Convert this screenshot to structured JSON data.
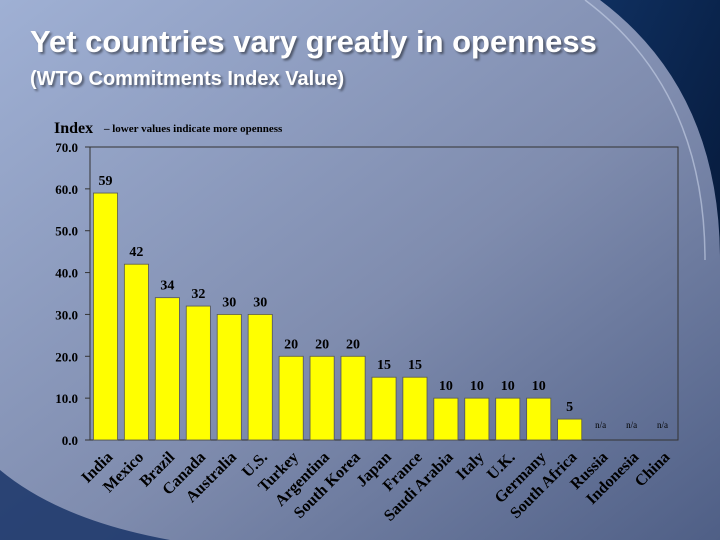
{
  "slide": {
    "title": "Yet countries vary greatly in openness",
    "subtitle": "(WTO Commitments Index Value)",
    "colors": {
      "bar": "#ffff00",
      "bar_stroke": "#555555",
      "background_dark": "#1b3a6b",
      "background_light": "#aab6d0"
    }
  },
  "chart_data": {
    "type": "bar",
    "ylabel": "Index",
    "ylabel_note": "– lower values indicate more openness",
    "ylim": [
      0,
      70
    ],
    "yticks": [
      "0.0",
      "10.0",
      "20.0",
      "30.0",
      "40.0",
      "50.0",
      "60.0",
      "70.0"
    ],
    "grid": false,
    "categories": [
      "India",
      "Mexico",
      "Brazil",
      "Canada",
      "Australia",
      "U.S.",
      "Turkey",
      "Argentina",
      "South Korea",
      "Japan",
      "France",
      "Saudi Arabia",
      "Italy",
      "U.K.",
      "Germany",
      "South Africa",
      "Russia",
      "Indonesia",
      "China"
    ],
    "values": [
      59,
      42,
      34,
      32,
      30,
      30,
      20,
      20,
      20,
      15,
      15,
      10,
      10,
      10,
      10,
      5,
      null,
      null,
      null
    ],
    "data_labels": [
      "59",
      "42",
      "34",
      "32",
      "30",
      "30",
      "20",
      "20",
      "20",
      "15",
      "15",
      "10",
      "10",
      "10",
      "10",
      "5",
      "n/a",
      "n/a",
      "n/a"
    ]
  }
}
